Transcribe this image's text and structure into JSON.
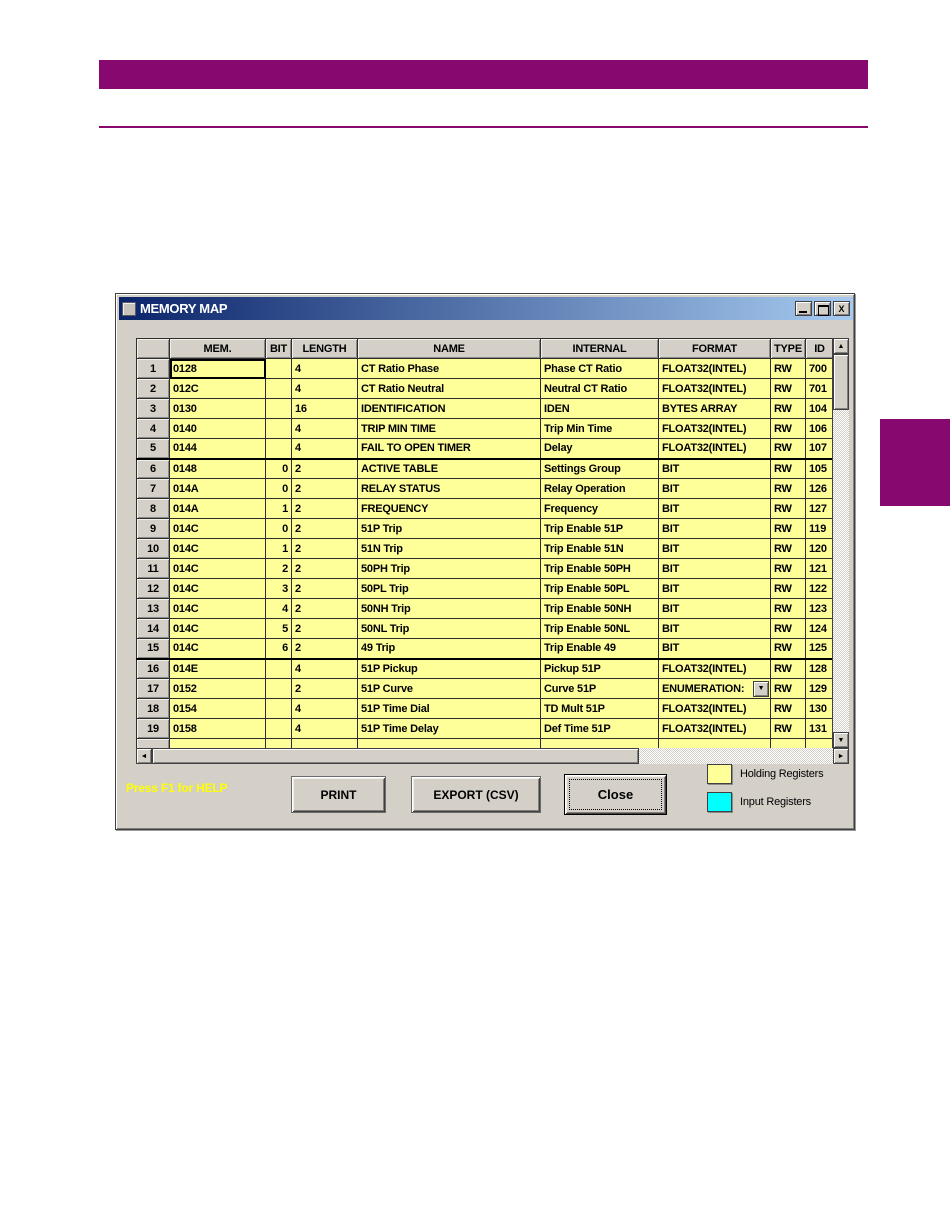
{
  "colors": {
    "accent_magenta": "#87096f",
    "dialog_gray": "#d4d0c8",
    "holding_yellow": "#ffff99",
    "input_cyan": "#00ffff",
    "titlebar_left": "#0a246a",
    "titlebar_right": "#a6caf0"
  },
  "window": {
    "title": "MEMORY MAP",
    "minimize_label": "_",
    "maximize_label": "□",
    "close_label": "X"
  },
  "table": {
    "headers": [
      "",
      "MEM.",
      "BIT",
      "LENGTH",
      "NAME",
      "INTERNAL",
      "FORMAT",
      "TYPE",
      "ID"
    ],
    "rows": [
      {
        "num": "1",
        "mem": "0128",
        "bit": "",
        "len": "4",
        "name": "CT Ratio Phase",
        "internal": "Phase CT Ratio",
        "format": "FLOAT32(INTEL)",
        "type": "RW",
        "id": "700",
        "selected": true
      },
      {
        "num": "2",
        "mem": "012C",
        "bit": "",
        "len": "4",
        "name": "CT Ratio Neutral",
        "internal": "Neutral CT Ratio",
        "format": "FLOAT32(INTEL)",
        "type": "RW",
        "id": "701"
      },
      {
        "num": "3",
        "mem": "0130",
        "bit": "",
        "len": "16",
        "name": "IDENTIFICATION",
        "internal": "IDEN",
        "format": "BYTES ARRAY",
        "type": "RW",
        "id": "104"
      },
      {
        "num": "4",
        "mem": "0140",
        "bit": "",
        "len": "4",
        "name": "TRIP MIN TIME",
        "internal": "Trip Min Time",
        "format": "FLOAT32(INTEL)",
        "type": "RW",
        "id": "106"
      },
      {
        "num": "5",
        "mem": "0144",
        "bit": "",
        "len": "4",
        "name": "FAIL TO OPEN TIMER",
        "internal": "Delay",
        "format": "FLOAT32(INTEL)",
        "type": "RW",
        "id": "107",
        "thick_bottom": true
      },
      {
        "num": "6",
        "mem": "0148",
        "bit": "0",
        "len": "2",
        "name": "ACTIVE TABLE",
        "internal": "Settings Group",
        "format": "BIT",
        "type": "RW",
        "id": "105"
      },
      {
        "num": "7",
        "mem": "014A",
        "bit": "0",
        "len": "2",
        "name": "RELAY STATUS",
        "internal": "Relay Operation",
        "format": "BIT",
        "type": "RW",
        "id": "126"
      },
      {
        "num": "8",
        "mem": "014A",
        "bit": "1",
        "len": "2",
        "name": "FREQUENCY",
        "internal": "Frequency",
        "format": "BIT",
        "type": "RW",
        "id": "127"
      },
      {
        "num": "9",
        "mem": "014C",
        "bit": "0",
        "len": "2",
        "name": "51P Trip",
        "internal": "Trip Enable 51P",
        "format": "BIT",
        "type": "RW",
        "id": "119"
      },
      {
        "num": "10",
        "mem": "014C",
        "bit": "1",
        "len": "2",
        "name": "51N Trip",
        "internal": "Trip Enable 51N",
        "format": "BIT",
        "type": "RW",
        "id": "120"
      },
      {
        "num": "11",
        "mem": "014C",
        "bit": "2",
        "len": "2",
        "name": "50PH Trip",
        "internal": "Trip Enable 50PH",
        "format": "BIT",
        "type": "RW",
        "id": "121"
      },
      {
        "num": "12",
        "mem": "014C",
        "bit": "3",
        "len": "2",
        "name": "50PL Trip",
        "internal": "Trip Enable 50PL",
        "format": "BIT",
        "type": "RW",
        "id": "122"
      },
      {
        "num": "13",
        "mem": "014C",
        "bit": "4",
        "len": "2",
        "name": "50NH Trip",
        "internal": "Trip Enable 50NH",
        "format": "BIT",
        "type": "RW",
        "id": "123"
      },
      {
        "num": "14",
        "mem": "014C",
        "bit": "5",
        "len": "2",
        "name": "50NL Trip",
        "internal": "Trip Enable 50NL",
        "format": "BIT",
        "type": "RW",
        "id": "124"
      },
      {
        "num": "15",
        "mem": "014C",
        "bit": "6",
        "len": "2",
        "name": "49 Trip",
        "internal": "Trip Enable 49",
        "format": "BIT",
        "type": "RW",
        "id": "125",
        "thick_bottom": true
      },
      {
        "num": "16",
        "mem": "014E",
        "bit": "",
        "len": "4",
        "name": "51P Pickup",
        "internal": "Pickup 51P",
        "format": "FLOAT32(INTEL)",
        "type": "RW",
        "id": "128"
      },
      {
        "num": "17",
        "mem": "0152",
        "bit": "",
        "len": "2",
        "name": "51P Curve",
        "internal": "Curve 51P",
        "format": "ENUMERATION:",
        "format_dropdown": true,
        "type": "RW",
        "id": "129"
      },
      {
        "num": "18",
        "mem": "0154",
        "bit": "",
        "len": "4",
        "name": "51P Time Dial",
        "internal": "TD Mult 51P",
        "format": "FLOAT32(INTEL)",
        "type": "RW",
        "id": "130"
      },
      {
        "num": "19",
        "mem": "0158",
        "bit": "",
        "len": "4",
        "name": "51P Time Delay",
        "internal": "Def Time 51P",
        "format": "FLOAT32(INTEL)",
        "type": "RW",
        "id": "131"
      }
    ]
  },
  "scrollbars": {
    "up_arrow": "▲",
    "down_arrow": "▼",
    "left_arrow": "◄",
    "right_arrow": "►",
    "dropdown_arrow": "▼"
  },
  "footer": {
    "help_text": "Press F1 for HELP",
    "print_label": "PRINT",
    "export_label": "EXPORT (CSV)",
    "close_label": "Close",
    "legend": [
      {
        "label": "Holding Registers",
        "color": "#ffff99"
      },
      {
        "label": "Input Registers",
        "color": "#00ffff"
      }
    ]
  }
}
